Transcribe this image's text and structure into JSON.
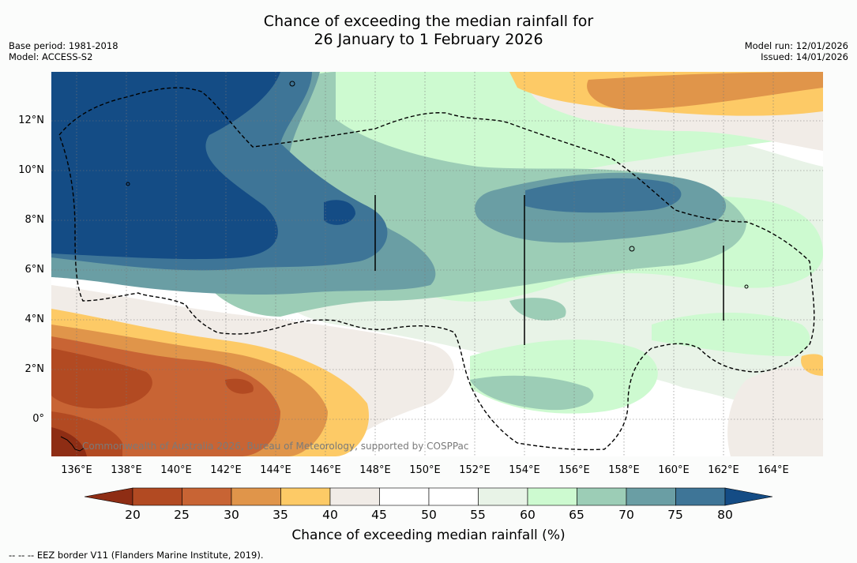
{
  "title": {
    "line1": "Chance of exceeding the median rainfall for",
    "line2": "26 January to 1 February 2026"
  },
  "meta": {
    "base_period": "Base period: 1981-2018",
    "model": "Model: ACCESS-S2",
    "model_run": "Model run: 12/01/2026",
    "issued": "Issued: 14/01/2026"
  },
  "axes": {
    "lat_labels": [
      "12°N",
      "10°N",
      "8°N",
      "6°N",
      "4°N",
      "2°N",
      "0°"
    ],
    "lon_labels": [
      "136°E",
      "138°E",
      "140°E",
      "142°E",
      "144°E",
      "146°E",
      "148°E",
      "150°E",
      "152°E",
      "154°E",
      "156°E",
      "158°E",
      "160°E",
      "162°E",
      "164°E"
    ]
  },
  "credit": "Commonwealth of Australia 2026, Bureau of Meteorology, supported by COSPPac",
  "colorbar": {
    "ticks": [
      "20",
      "25",
      "30",
      "35",
      "40",
      "45",
      "50",
      "55",
      "60",
      "65",
      "70",
      "75",
      "80"
    ],
    "label": "Chance of exceeding median rainfall (%)",
    "colors": [
      "#8e2d14",
      "#b24a22",
      "#c86434",
      "#e0954a",
      "#fdca66",
      "#f1ece7",
      "#ffffff",
      "#ffffff",
      "#e8f3e7",
      "#cdfad0",
      "#9ccdb6",
      "#6a9ea4",
      "#3e7597",
      "#144c85"
    ],
    "under_color": "#8e2d14",
    "over_color": "#144c85"
  },
  "footnote": "-- -- -- EEZ border V11 (Flanders Marine Institute, 2019)."
}
